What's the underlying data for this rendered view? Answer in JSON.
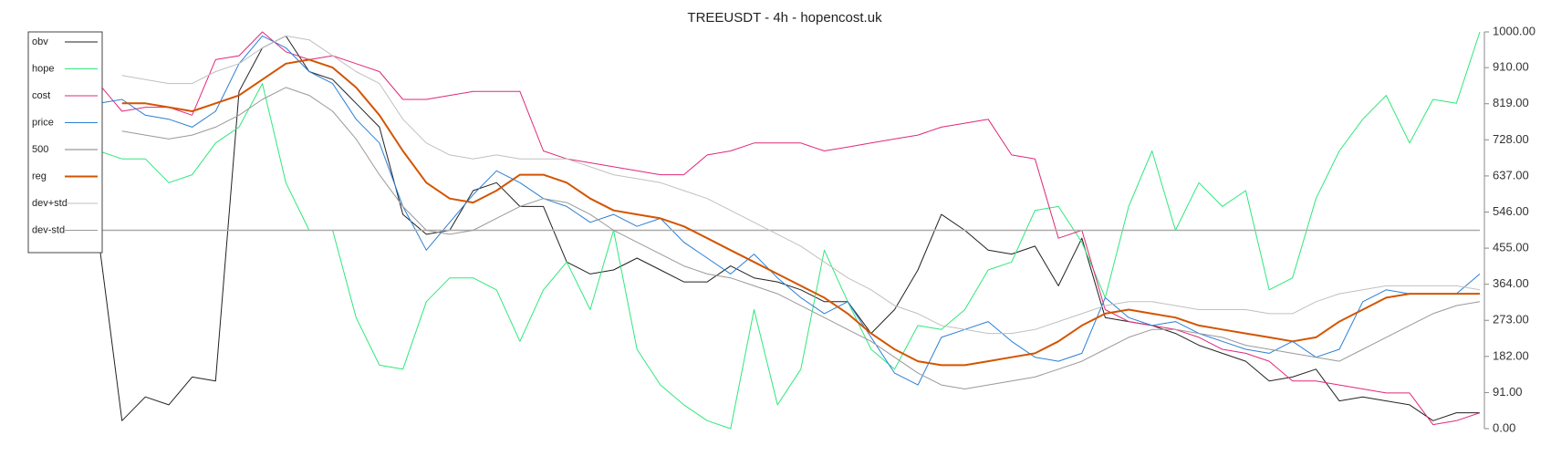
{
  "chart_data": {
    "type": "line",
    "title": "TREEUSDT - 4h - hopencost.uk",
    "ylim": [
      0,
      1000
    ],
    "yticks": [
      {
        "value": 0,
        "label": "0.00"
      },
      {
        "value": 91,
        "label": "91.00"
      },
      {
        "value": 182,
        "label": "182.00"
      },
      {
        "value": 273,
        "label": "273.00"
      },
      {
        "value": 364,
        "label": "364.00"
      },
      {
        "value": 455,
        "label": "455.00"
      },
      {
        "value": 546,
        "label": "546.00"
      },
      {
        "value": 637,
        "label": "637.00"
      },
      {
        "value": 728,
        "label": "728.00"
      },
      {
        "value": 819,
        "label": "819.00"
      },
      {
        "value": 910,
        "label": "910.00"
      },
      {
        "value": 1000,
        "label": "1000.00"
      }
    ],
    "legend": "top-left",
    "series": [
      {
        "name": "obv",
        "color": "#222222",
        "width": 1,
        "values": [
          480,
          20,
          80,
          60,
          130,
          120,
          850,
          960,
          990,
          900,
          880,
          820,
          760,
          540,
          490,
          500,
          600,
          620,
          560,
          560,
          420,
          390,
          400,
          430,
          400,
          370,
          370,
          410,
          380,
          370,
          350,
          320,
          320,
          240,
          300,
          400,
          540,
          500,
          450,
          440,
          460,
          360,
          480,
          280,
          270,
          260,
          240,
          210,
          190,
          170,
          120,
          130,
          150,
          70,
          80,
          70,
          60,
          20,
          40,
          40
        ]
      },
      {
        "name": "hope",
        "color": "#2ee87a",
        "width": 1,
        "values": [
          700,
          680,
          680,
          620,
          640,
          720,
          760,
          870,
          620,
          500,
          500,
          280,
          160,
          150,
          320,
          380,
          380,
          350,
          220,
          350,
          420,
          300,
          500,
          200,
          110,
          60,
          20,
          0,
          300,
          60,
          150,
          450,
          320,
          200,
          150,
          260,
          250,
          300,
          400,
          420,
          550,
          560,
          470,
          330,
          560,
          700,
          500,
          620,
          560,
          600,
          350,
          380,
          580,
          700,
          780,
          840,
          720,
          830,
          820,
          1000
        ]
      },
      {
        "name": "cost",
        "color": "#e0287a",
        "width": 1,
        "values": [
          870,
          800,
          810,
          810,
          790,
          930,
          940,
          1000,
          950,
          930,
          940,
          920,
          900,
          830,
          830,
          840,
          850,
          850,
          850,
          700,
          680,
          670,
          660,
          650,
          640,
          640,
          690,
          700,
          720,
          720,
          720,
          700,
          710,
          720,
          730,
          740,
          760,
          770,
          780,
          690,
          680,
          480,
          500,
          300,
          270,
          260,
          250,
          230,
          200,
          190,
          170,
          120,
          120,
          110,
          100,
          90,
          90,
          10,
          20,
          40
        ]
      },
      {
        "name": "price",
        "color": "#2a7fd4",
        "width": 1,
        "values": [
          820,
          830,
          790,
          780,
          760,
          800,
          920,
          990,
          960,
          900,
          870,
          780,
          720,
          560,
          450,
          520,
          590,
          650,
          620,
          580,
          560,
          520,
          540,
          510,
          530,
          470,
          430,
          390,
          440,
          380,
          330,
          290,
          320,
          230,
          140,
          110,
          230,
          250,
          270,
          220,
          180,
          170,
          190,
          330,
          280,
          260,
          270,
          240,
          220,
          200,
          190,
          220,
          180,
          200,
          320,
          350,
          340,
          340,
          340,
          390
        ]
      },
      {
        "name": "500",
        "color": "#aaaaaa",
        "width": 1.5,
        "values": [
          500,
          500,
          500,
          500,
          500,
          500,
          500,
          500,
          500,
          500,
          500,
          500,
          500,
          500,
          500,
          500,
          500,
          500,
          500,
          500,
          500,
          500,
          500,
          500,
          500,
          500,
          500,
          500,
          500,
          500,
          500,
          500,
          500,
          500,
          500,
          500,
          500,
          500,
          500,
          500,
          500,
          500,
          500,
          500,
          500,
          500,
          500,
          500,
          500,
          500,
          500,
          500,
          500,
          500,
          500,
          500,
          500,
          500,
          500,
          500
        ]
      },
      {
        "name": "reg",
        "color": "#d35400",
        "width": 2,
        "values": [
          null,
          820,
          820,
          810,
          800,
          820,
          840,
          880,
          920,
          930,
          910,
          860,
          790,
          700,
          620,
          580,
          570,
          600,
          640,
          640,
          620,
          580,
          550,
          540,
          530,
          510,
          480,
          450,
          420,
          390,
          360,
          330,
          290,
          240,
          200,
          170,
          160,
          160,
          170,
          180,
          190,
          220,
          260,
          290,
          300,
          290,
          280,
          260,
          250,
          240,
          230,
          220,
          230,
          270,
          300,
          330,
          340,
          340,
          340,
          340
        ]
      },
      {
        "name": "dev+std",
        "color": "#c0c0c0",
        "width": 1,
        "values": [
          null,
          890,
          880,
          870,
          870,
          900,
          920,
          960,
          990,
          980,
          940,
          900,
          870,
          780,
          720,
          690,
          680,
          690,
          680,
          680,
          680,
          660,
          640,
          630,
          620,
          600,
          580,
          550,
          520,
          490,
          460,
          420,
          380,
          350,
          310,
          290,
          260,
          250,
          240,
          240,
          250,
          270,
          290,
          310,
          320,
          320,
          310,
          300,
          300,
          300,
          290,
          290,
          320,
          340,
          350,
          360,
          360,
          360,
          360,
          350
        ]
      },
      {
        "name": "dev-std",
        "color": "#999999",
        "width": 1,
        "values": [
          null,
          750,
          740,
          730,
          740,
          760,
          790,
          830,
          860,
          840,
          800,
          730,
          640,
          560,
          500,
          490,
          500,
          530,
          560,
          580,
          570,
          540,
          500,
          470,
          440,
          410,
          390,
          380,
          360,
          340,
          310,
          280,
          250,
          220,
          180,
          140,
          110,
          100,
          110,
          120,
          130,
          150,
          170,
          200,
          230,
          250,
          250,
          240,
          230,
          210,
          200,
          190,
          180,
          170,
          200,
          230,
          260,
          290,
          310,
          320
        ]
      }
    ]
  }
}
